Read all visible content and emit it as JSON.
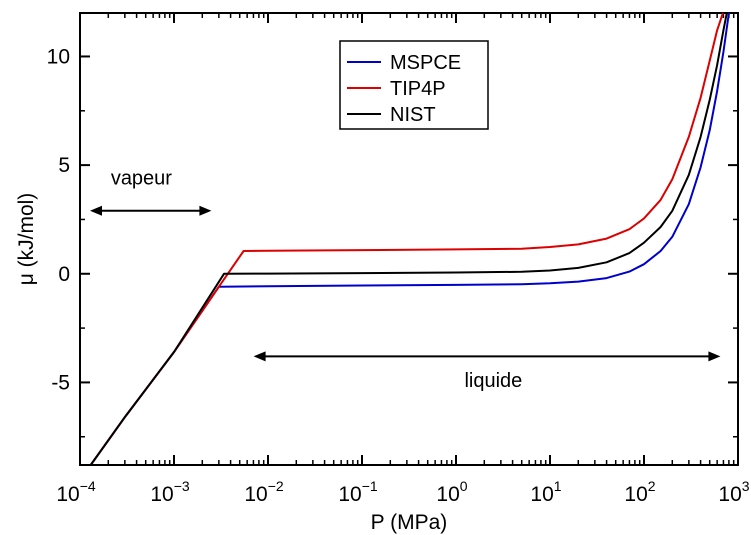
{
  "chart_data": {
    "type": "line",
    "title": "",
    "xlabel": "P (MPa)",
    "ylabel": "μ (kJ/mol)",
    "xscale": "log",
    "xlim": [
      0.0001,
      1000
    ],
    "ylim": [
      -8.8,
      12
    ],
    "x_ticks": [
      {
        "value": 0.0001,
        "base": "10",
        "exp": "−4"
      },
      {
        "value": 0.001,
        "base": "10",
        "exp": "−3"
      },
      {
        "value": 0.01,
        "base": "10",
        "exp": "−2"
      },
      {
        "value": 0.1,
        "base": "10",
        "exp": "−1"
      },
      {
        "value": 1,
        "base": "10",
        "exp": "0"
      },
      {
        "value": 10,
        "base": "10",
        "exp": "1"
      },
      {
        "value": 100,
        "base": "10",
        "exp": "2"
      },
      {
        "value": 1000,
        "base": "10",
        "exp": "3"
      }
    ],
    "y_ticks": [
      {
        "value": -5,
        "label": "-5"
      },
      {
        "value": 0,
        "label": "0"
      },
      {
        "value": 5,
        "label": "5"
      },
      {
        "value": 10,
        "label": "10"
      }
    ],
    "legend_position": "top-center",
    "series": [
      {
        "name": "MSPCE",
        "color": "#0000cc",
        "x": [
          0.00013,
          0.0003,
          0.001,
          0.003,
          0.01,
          0.1,
          1,
          5,
          10,
          20,
          40,
          70,
          100,
          150,
          200,
          300,
          400,
          500,
          600,
          700,
          800
        ],
        "y": [
          -8.8,
          -6.6,
          -3.6,
          -0.6,
          -0.57,
          -0.54,
          -0.51,
          -0.48,
          -0.44,
          -0.36,
          -0.2,
          0.1,
          0.44,
          1.05,
          1.7,
          3.2,
          4.9,
          6.6,
          8.4,
          10.2,
          12
        ]
      },
      {
        "name": "TIP4P",
        "color": "#dd0000",
        "x": [
          0.00013,
          0.0003,
          0.001,
          0.003,
          0.0055,
          0.01,
          0.1,
          1,
          5,
          10,
          20,
          40,
          70,
          100,
          150,
          200,
          300,
          400,
          500,
          600,
          690
        ],
        "y": [
          -8.8,
          -6.6,
          -3.6,
          -0.6,
          1.05,
          1.06,
          1.09,
          1.12,
          1.15,
          1.23,
          1.35,
          1.62,
          2.05,
          2.55,
          3.4,
          4.35,
          6.3,
          8.1,
          9.8,
          11.2,
          12
        ]
      },
      {
        "name": "NIST",
        "color": "#000000",
        "x": [
          0.00013,
          0.0003,
          0.001,
          0.0034,
          0.01,
          0.1,
          1,
          5,
          10,
          20,
          40,
          70,
          100,
          150,
          200,
          300,
          400,
          500,
          600,
          700,
          760
        ],
        "y": [
          -8.8,
          -6.6,
          -3.6,
          0.0,
          0.01,
          0.03,
          0.06,
          0.09,
          0.15,
          0.27,
          0.53,
          0.95,
          1.43,
          2.15,
          2.9,
          4.55,
          6.3,
          8.0,
          9.6,
          11.2,
          12
        ]
      }
    ],
    "annotations": [
      {
        "text": "vapeur",
        "arrow_from_x": 0.0001,
        "arrow_to_x": 0.0025,
        "arrow_y": 2.9,
        "text_x": 0.00045,
        "text_y": 4.1
      },
      {
        "text": "liquide",
        "arrow_from_x": 0.0055,
        "arrow_to_x": 650,
        "arrow_y": -3.8,
        "text_x": 2.5,
        "text_y": -5.2
      }
    ]
  }
}
